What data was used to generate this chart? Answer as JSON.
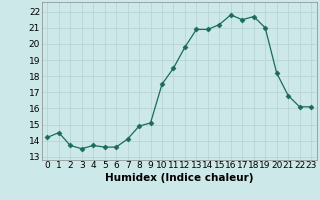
{
  "x": [
    0,
    1,
    2,
    3,
    4,
    5,
    6,
    7,
    8,
    9,
    10,
    11,
    12,
    13,
    14,
    15,
    16,
    17,
    18,
    19,
    20,
    21,
    22,
    23
  ],
  "y": [
    14.2,
    14.5,
    13.7,
    13.5,
    13.7,
    13.6,
    13.6,
    14.1,
    14.9,
    15.1,
    17.5,
    18.5,
    19.8,
    20.9,
    20.9,
    21.2,
    21.8,
    21.5,
    21.7,
    21.0,
    18.2,
    16.8,
    16.1,
    16.1
  ],
  "line_color": "#1a6b5a",
  "marker": "D",
  "marker_size": 2.5,
  "bg_color": "#cce8e8",
  "grid_color": "#b8d4d4",
  "xlabel": "Humidex (Indice chaleur)",
  "ylim": [
    12.8,
    22.6
  ],
  "xlim": [
    -0.5,
    23.5
  ],
  "yticks": [
    13,
    14,
    15,
    16,
    17,
    18,
    19,
    20,
    21,
    22
  ],
  "xticks": [
    0,
    1,
    2,
    3,
    4,
    5,
    6,
    7,
    8,
    9,
    10,
    11,
    12,
    13,
    14,
    15,
    16,
    17,
    18,
    19,
    20,
    21,
    22,
    23
  ],
  "font_size": 6.5,
  "xlabel_fontsize": 7.5
}
